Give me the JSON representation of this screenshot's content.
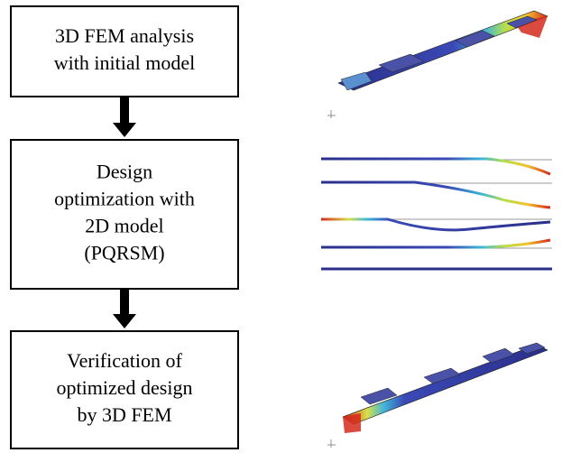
{
  "nodes": [
    {
      "lines": [
        "3D FEM analysis",
        "with initial model"
      ]
    },
    {
      "lines": [
        "Design",
        "optimization with",
        "2D model",
        "(PQRSM)"
      ]
    },
    {
      "lines": [
        "Verification of",
        "optimized design",
        "by 3D FEM"
      ]
    }
  ]
}
